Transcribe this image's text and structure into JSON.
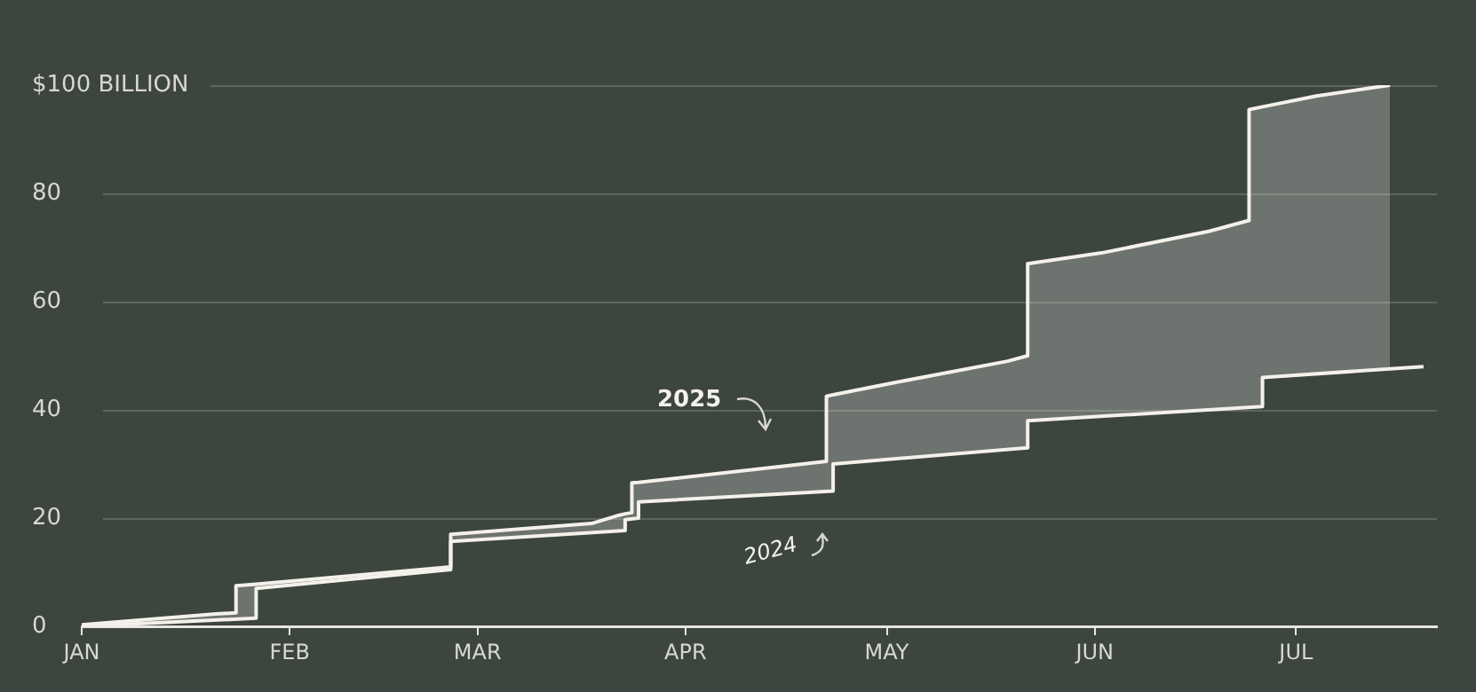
{
  "chart_data": {
    "type": "line",
    "xlim": [
      "--01-01",
      "--07-22"
    ],
    "xticks": [
      {
        "value": "--01-01",
        "label": "JAN"
      },
      {
        "value": "--02-01",
        "label": "FEB"
      },
      {
        "value": "--03-01",
        "label": "MAR"
      },
      {
        "value": "--04-01",
        "label": "APR"
      },
      {
        "value": "--05-01",
        "label": "MAY"
      },
      {
        "value": "--06-01",
        "label": "JUN"
      },
      {
        "value": "--07-01",
        "label": "JUL"
      }
    ],
    "ylim": [
      0,
      100
    ],
    "yticks": [
      0,
      20,
      40,
      60,
      80,
      {
        "value": 100,
        "label": "$100 BILLION"
      }
    ],
    "grid": "y",
    "marker": "none",
    "series": [
      {
        "name": "2025",
        "color": "#f4f1ea",
        "x": [
          "--01-01",
          "--01-21",
          "--01-24",
          "--01-24",
          "--01-27",
          "--01-27",
          "--02-25",
          "--02-25",
          "--03-18",
          "--03-22",
          "--03-23",
          "--03-23",
          "--03-24",
          "--03-24",
          "--03-25",
          "--03-25",
          "--04-22",
          "--04-22",
          "--04-23",
          "--04-23",
          "--05-02",
          "--05-19",
          "--05-22",
          "--05-22",
          "--06-02",
          "--06-18",
          "--06-24",
          "--06-24",
          "--06-26",
          "--06-26",
          "--07-04",
          "--07-15"
        ],
        "values": [
          0.3,
          2.3,
          2.5,
          7.5,
          7.8,
          7.8,
          11,
          17,
          19,
          20.5,
          20.8,
          20.8,
          21,
          26.5,
          26.6,
          26.6,
          30.5,
          42.5,
          42.8,
          42.8,
          45,
          49,
          50,
          67,
          69,
          73,
          75,
          95.5,
          96,
          96,
          98,
          100
        ],
        "lower": [
          0,
          1.2,
          1.3,
          1.3,
          1.5,
          7,
          10.5,
          15.7,
          17.3,
          17.6,
          17.7,
          19.7,
          19.9,
          19.9,
          20,
          23,
          24.9,
          24.9,
          25,
          30,
          30.9,
          32.7,
          33,
          38,
          38.8,
          40,
          40.5,
          40.5,
          40.6,
          46,
          46.7,
          47.6
        ],
        "upper": [
          0.3,
          2.3,
          2.5,
          7.5,
          7.8,
          7.8,
          11,
          17,
          19,
          20.5,
          20.8,
          20.8,
          21,
          26.5,
          26.6,
          26.6,
          30.5,
          42.5,
          42.8,
          42.8,
          45,
          49,
          50,
          67,
          69,
          73,
          75,
          95.5,
          96,
          96,
          98,
          100
        ]
      },
      {
        "name": "2024",
        "color": "#f4f1ea",
        "x": [
          "--01-01",
          "--01-27",
          "--01-27",
          "--02-25",
          "--02-25",
          "--03-23",
          "--03-23",
          "--03-25",
          "--03-25",
          "--04-23",
          "--04-23",
          "--05-22",
          "--05-22",
          "--06-26",
          "--06-26",
          "--07-20"
        ],
        "values": [
          0,
          1.5,
          7,
          10.5,
          15.7,
          17.7,
          19.7,
          20,
          23,
          25,
          30,
          33,
          38,
          40.6,
          46,
          48
        ]
      }
    ]
  }
}
